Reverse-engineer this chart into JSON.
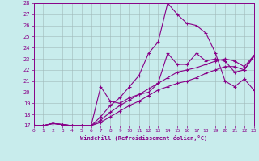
{
  "xlabel": "Windchill (Refroidissement éolien,°C)",
  "xlim": [
    0,
    23
  ],
  "ylim": [
    17,
    28
  ],
  "yticks": [
    17,
    18,
    19,
    20,
    21,
    22,
    23,
    24,
    25,
    26,
    27,
    28
  ],
  "xticks": [
    0,
    1,
    2,
    3,
    4,
    5,
    6,
    7,
    8,
    9,
    10,
    11,
    12,
    13,
    14,
    15,
    16,
    17,
    18,
    19,
    20,
    21,
    22,
    23
  ],
  "bg_color": "#c8ecec",
  "line_color": "#880088",
  "lines": [
    [
      0,
      17.0,
      1,
      17.0,
      2,
      17.2,
      3,
      17.1,
      4,
      17.0,
      5,
      17.0,
      6,
      17.0,
      7,
      17.8,
      8,
      18.8,
      9,
      19.5,
      10,
      20.5,
      11,
      21.5,
      12,
      23.5,
      13,
      24.5,
      14,
      28.0,
      15,
      27.0,
      16,
      26.2,
      17,
      26.0,
      18,
      25.3,
      19,
      23.5,
      20,
      21.0,
      21,
      20.5,
      22,
      21.2,
      23,
      20.2
    ],
    [
      0,
      17.0,
      1,
      17.0,
      2,
      17.2,
      3,
      17.1,
      4,
      17.0,
      5,
      17.0,
      6,
      17.0,
      7,
      20.5,
      8,
      19.2,
      9,
      19.0,
      10,
      19.5,
      11,
      19.8,
      12,
      20.0,
      13,
      20.8,
      14,
      23.5,
      15,
      22.5,
      16,
      22.5,
      17,
      23.5,
      18,
      22.8,
      19,
      23.0,
      20,
      22.8,
      21,
      21.8,
      22,
      22.0,
      23,
      23.2
    ],
    [
      0,
      17.0,
      1,
      17.0,
      2,
      17.2,
      3,
      17.1,
      4,
      17.0,
      5,
      17.0,
      6,
      17.0,
      7,
      17.5,
      8,
      18.2,
      9,
      18.8,
      10,
      19.3,
      11,
      19.8,
      12,
      20.3,
      13,
      20.8,
      14,
      21.3,
      15,
      21.8,
      16,
      22.0,
      17,
      22.2,
      18,
      22.5,
      19,
      22.8,
      20,
      23.0,
      21,
      22.8,
      22,
      22.3,
      23,
      23.3
    ],
    [
      0,
      17.0,
      1,
      17.0,
      2,
      17.2,
      3,
      17.1,
      4,
      17.0,
      5,
      17.0,
      6,
      17.0,
      7,
      17.3,
      8,
      17.8,
      9,
      18.3,
      10,
      18.8,
      11,
      19.2,
      12,
      19.7,
      13,
      20.2,
      14,
      20.5,
      15,
      20.8,
      16,
      21.0,
      17,
      21.3,
      18,
      21.7,
      19,
      22.0,
      20,
      22.3,
      21,
      22.3,
      22,
      22.0,
      23,
      23.3
    ]
  ]
}
